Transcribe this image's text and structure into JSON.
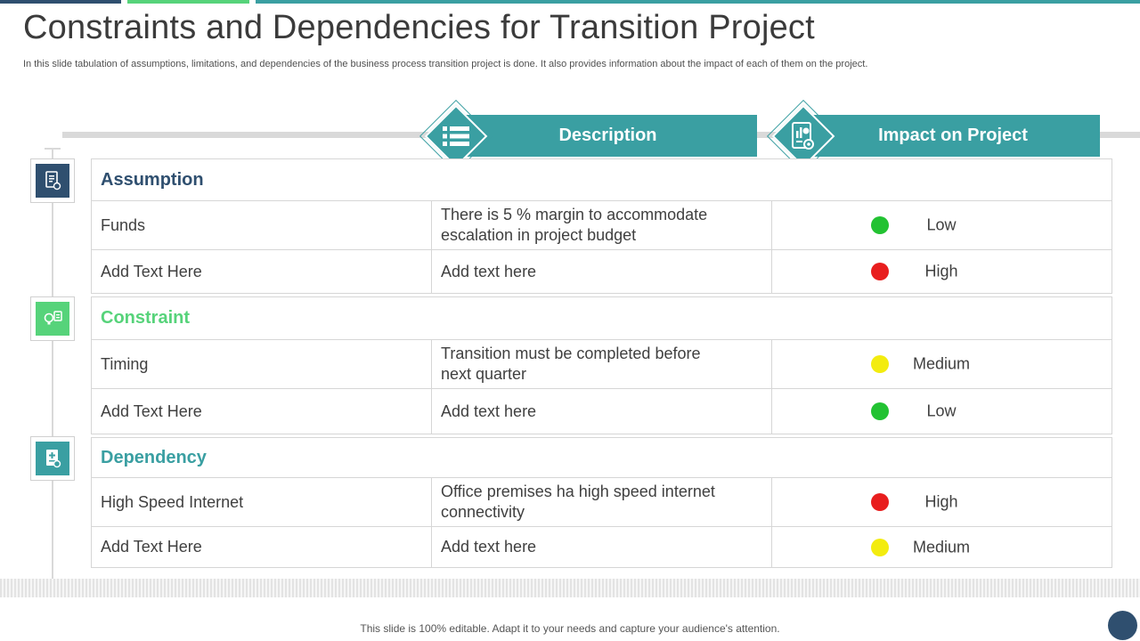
{
  "title": "Constraints and Dependencies for Transition Project",
  "subtitle": "In this slide tabulation of assumptions, limitations, and dependencies of the business process transition project is done. It also provides information about the impact of each of them on the project.",
  "headers": {
    "description": "Description",
    "impact": "Impact on Project"
  },
  "icons": {
    "description_header": "list-icon",
    "impact_header": "report-chart-icon",
    "assumption": "document-icon",
    "constraint": "lightbulb-icon",
    "dependency": "plus-document-icon"
  },
  "colors": {
    "teal": "#3a9fa2",
    "navy": "#2f4f6f",
    "green": "#56d37a",
    "status_low": "#22c232",
    "status_high": "#e81e1e",
    "status_medium": "#f3ec0f"
  },
  "groups": [
    {
      "title": "Assumption",
      "rows": [
        {
          "name": "Funds",
          "description": "There is 5 % margin to accommodate escalation in project budget",
          "impact": "Low",
          "status": "low"
        },
        {
          "name": "Add Text Here",
          "description": "Add text here",
          "impact": "High",
          "status": "high"
        }
      ]
    },
    {
      "title": "Constraint",
      "rows": [
        {
          "name": "Timing",
          "description": "Transition must be completed before next quarter",
          "impact": "Medium",
          "status": "medium"
        },
        {
          "name": "Add Text Here",
          "description": "Add text here",
          "impact": "Low",
          "status": "low"
        }
      ]
    },
    {
      "title": "Dependency",
      "rows": [
        {
          "name": "High Speed Internet",
          "description": "Office premises ha high speed internet connectivity",
          "impact": "High",
          "status": "high"
        },
        {
          "name": "Add Text Here",
          "description": "Add text here",
          "impact": "Medium",
          "status": "medium"
        }
      ]
    }
  ],
  "footer": "This slide is 100% editable. Adapt it to your needs and capture your audience's attention."
}
